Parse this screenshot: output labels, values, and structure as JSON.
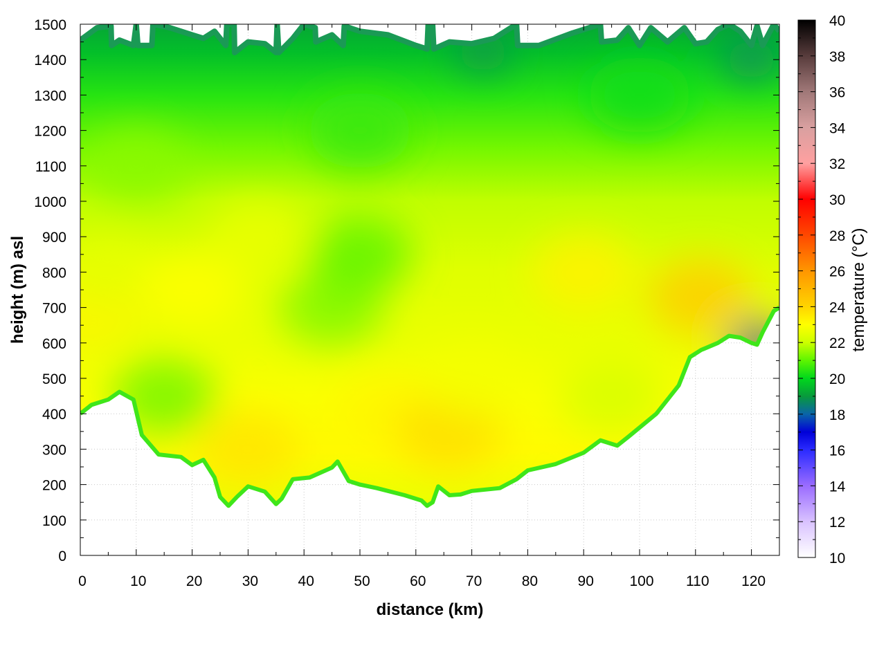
{
  "chart_data": {
    "type": "heatmap",
    "title": "",
    "xlabel": "distance (km)",
    "ylabel": "height (m) asl",
    "colorbar_label": "temperature (°C)",
    "xlim": [
      0,
      125
    ],
    "ylim": [
      0,
      1500
    ],
    "x_ticks": [
      0,
      10,
      20,
      30,
      40,
      50,
      60,
      70,
      80,
      90,
      100,
      110,
      120
    ],
    "y_ticks": [
      0,
      100,
      200,
      300,
      400,
      500,
      600,
      700,
      800,
      900,
      1000,
      1100,
      1200,
      1300,
      1400,
      1500
    ],
    "grid": true,
    "colorbar_range": [
      10,
      40
    ],
    "colorbar_ticks": [
      10,
      12,
      14,
      16,
      18,
      20,
      22,
      24,
      26,
      28,
      30,
      32,
      34,
      36,
      38,
      40
    ],
    "colormap": [
      {
        "value": 10,
        "color": "#ffffff"
      },
      {
        "value": 12,
        "color": "#d9c2ff"
      },
      {
        "value": 14,
        "color": "#9a6cff"
      },
      {
        "value": 16,
        "color": "#2b2bff"
      },
      {
        "value": 17,
        "color": "#0000d8"
      },
      {
        "value": 18,
        "color": "#0a64a8"
      },
      {
        "value": 19,
        "color": "#089a3c"
      },
      {
        "value": 20,
        "color": "#00d81c"
      },
      {
        "value": 21,
        "color": "#5ef500"
      },
      {
        "value": 22,
        "color": "#ccff00"
      },
      {
        "value": 23,
        "color": "#ffff00"
      },
      {
        "value": 24,
        "color": "#ffd400"
      },
      {
        "value": 26,
        "color": "#ff9600"
      },
      {
        "value": 28,
        "color": "#ff4800"
      },
      {
        "value": 30,
        "color": "#ff0000"
      },
      {
        "value": 32,
        "color": "#ffa0a0"
      },
      {
        "value": 34,
        "color": "#d9a0a0"
      },
      {
        "value": 36,
        "color": "#a07878"
      },
      {
        "value": 38,
        "color": "#583c3c"
      },
      {
        "value": 40,
        "color": "#000000"
      }
    ],
    "ground_profile": [
      {
        "x": 0,
        "y": 400
      },
      {
        "x": 2,
        "y": 425
      },
      {
        "x": 5,
        "y": 440
      },
      {
        "x": 7,
        "y": 462
      },
      {
        "x": 9.5,
        "y": 440
      },
      {
        "x": 11,
        "y": 340
      },
      {
        "x": 14,
        "y": 285
      },
      {
        "x": 18,
        "y": 278
      },
      {
        "x": 20,
        "y": 255
      },
      {
        "x": 22,
        "y": 270
      },
      {
        "x": 24,
        "y": 220
      },
      {
        "x": 25,
        "y": 165
      },
      {
        "x": 26.5,
        "y": 140
      },
      {
        "x": 28,
        "y": 165
      },
      {
        "x": 30,
        "y": 195
      },
      {
        "x": 33,
        "y": 180
      },
      {
        "x": 35,
        "y": 145
      },
      {
        "x": 36,
        "y": 160
      },
      {
        "x": 38,
        "y": 215
      },
      {
        "x": 41,
        "y": 220
      },
      {
        "x": 45,
        "y": 248
      },
      {
        "x": 46,
        "y": 265
      },
      {
        "x": 48,
        "y": 210
      },
      {
        "x": 50,
        "y": 200
      },
      {
        "x": 53,
        "y": 190
      },
      {
        "x": 55,
        "y": 182
      },
      {
        "x": 58,
        "y": 170
      },
      {
        "x": 61,
        "y": 155
      },
      {
        "x": 62,
        "y": 140
      },
      {
        "x": 63,
        "y": 150
      },
      {
        "x": 64,
        "y": 195
      },
      {
        "x": 66,
        "y": 170
      },
      {
        "x": 68,
        "y": 172
      },
      {
        "x": 70,
        "y": 182
      },
      {
        "x": 75,
        "y": 190
      },
      {
        "x": 78,
        "y": 215
      },
      {
        "x": 80,
        "y": 240
      },
      {
        "x": 85,
        "y": 258
      },
      {
        "x": 90,
        "y": 290
      },
      {
        "x": 93,
        "y": 325
      },
      {
        "x": 96,
        "y": 310
      },
      {
        "x": 98,
        "y": 335
      },
      {
        "x": 103,
        "y": 400
      },
      {
        "x": 105,
        "y": 440
      },
      {
        "x": 107,
        "y": 480
      },
      {
        "x": 109,
        "y": 560
      },
      {
        "x": 111,
        "y": 580
      },
      {
        "x": 114,
        "y": 600
      },
      {
        "x": 116,
        "y": 620
      },
      {
        "x": 118,
        "y": 615
      },
      {
        "x": 120,
        "y": 600
      },
      {
        "x": 121,
        "y": 595
      },
      {
        "x": 122,
        "y": 630
      },
      {
        "x": 124,
        "y": 690
      },
      {
        "x": 125,
        "y": 700
      }
    ],
    "top_profile": [
      {
        "x": 0,
        "y": 1455
      },
      {
        "x": 3,
        "y": 1490
      },
      {
        "x": 5.5,
        "y": 1495
      },
      {
        "x": 5.6,
        "y": 1440
      },
      {
        "x": 7,
        "y": 1455
      },
      {
        "x": 9.5,
        "y": 1440
      },
      {
        "x": 10,
        "y": 1500
      },
      {
        "x": 10.3,
        "y": 1440
      },
      {
        "x": 12.8,
        "y": 1440
      },
      {
        "x": 13,
        "y": 1500
      },
      {
        "x": 16,
        "y": 1490
      },
      {
        "x": 20,
        "y": 1470
      },
      {
        "x": 22,
        "y": 1460
      },
      {
        "x": 24,
        "y": 1480
      },
      {
        "x": 26,
        "y": 1440
      },
      {
        "x": 26.2,
        "y": 1500
      },
      {
        "x": 27.5,
        "y": 1500
      },
      {
        "x": 27.6,
        "y": 1420
      },
      {
        "x": 30,
        "y": 1450
      },
      {
        "x": 33,
        "y": 1445
      },
      {
        "x": 35,
        "y": 1420
      },
      {
        "x": 35.2,
        "y": 1500
      },
      {
        "x": 35.5,
        "y": 1420
      },
      {
        "x": 38,
        "y": 1460
      },
      {
        "x": 40,
        "y": 1500
      },
      {
        "x": 42,
        "y": 1490
      },
      {
        "x": 42.1,
        "y": 1450
      },
      {
        "x": 45,
        "y": 1470
      },
      {
        "x": 47,
        "y": 1440
      },
      {
        "x": 47.2,
        "y": 1495
      },
      {
        "x": 50,
        "y": 1480
      },
      {
        "x": 55,
        "y": 1470
      },
      {
        "x": 60,
        "y": 1440
      },
      {
        "x": 62,
        "y": 1430
      },
      {
        "x": 62.2,
        "y": 1500
      },
      {
        "x": 63,
        "y": 1500
      },
      {
        "x": 63.2,
        "y": 1430
      },
      {
        "x": 66,
        "y": 1450
      },
      {
        "x": 70,
        "y": 1445
      },
      {
        "x": 74,
        "y": 1460
      },
      {
        "x": 78,
        "y": 1500
      },
      {
        "x": 78.2,
        "y": 1440
      },
      {
        "x": 82,
        "y": 1440
      },
      {
        "x": 88,
        "y": 1475
      },
      {
        "x": 93,
        "y": 1500
      },
      {
        "x": 93.2,
        "y": 1450
      },
      {
        "x": 96,
        "y": 1455
      },
      {
        "x": 98,
        "y": 1490
      },
      {
        "x": 100,
        "y": 1440
      },
      {
        "x": 102,
        "y": 1490
      },
      {
        "x": 105,
        "y": 1450
      },
      {
        "x": 108,
        "y": 1490
      },
      {
        "x": 110,
        "y": 1445
      },
      {
        "x": 112,
        "y": 1450
      },
      {
        "x": 114,
        "y": 1485
      },
      {
        "x": 116,
        "y": 1500
      },
      {
        "x": 118,
        "y": 1480
      },
      {
        "x": 120,
        "y": 1440
      },
      {
        "x": 121,
        "y": 1495
      },
      {
        "x": 122,
        "y": 1440
      },
      {
        "x": 124,
        "y": 1500
      },
      {
        "x": 125,
        "y": 1480
      }
    ],
    "temperature_sample_points": [
      {
        "x": 2,
        "y": 700,
        "t": 23.2
      },
      {
        "x": 5,
        "y": 800,
        "t": 22.5
      },
      {
        "x": 15,
        "y": 450,
        "t": 21.2
      },
      {
        "x": 20,
        "y": 750,
        "t": 23.0
      },
      {
        "x": 30,
        "y": 300,
        "t": 23.6
      },
      {
        "x": 32,
        "y": 900,
        "t": 22.6
      },
      {
        "x": 45,
        "y": 700,
        "t": 21.3
      },
      {
        "x": 50,
        "y": 850,
        "t": 21.0
      },
      {
        "x": 55,
        "y": 400,
        "t": 23.2
      },
      {
        "x": 66,
        "y": 350,
        "t": 23.8
      },
      {
        "x": 70,
        "y": 500,
        "t": 22.8
      },
      {
        "x": 90,
        "y": 800,
        "t": 23.3
      },
      {
        "x": 95,
        "y": 450,
        "t": 22.2
      },
      {
        "x": 111,
        "y": 730,
        "t": 24.2
      },
      {
        "x": 121,
        "y": 600,
        "t": 17.8
      },
      {
        "x": 50,
        "y": 1200,
        "t": 20.6
      },
      {
        "x": 72,
        "y": 1420,
        "t": 18.8
      },
      {
        "x": 100,
        "y": 1300,
        "t": 20.2
      },
      {
        "x": 10,
        "y": 1100,
        "t": 21.4
      },
      {
        "x": 120,
        "y": 1400,
        "t": 18.6
      }
    ]
  }
}
